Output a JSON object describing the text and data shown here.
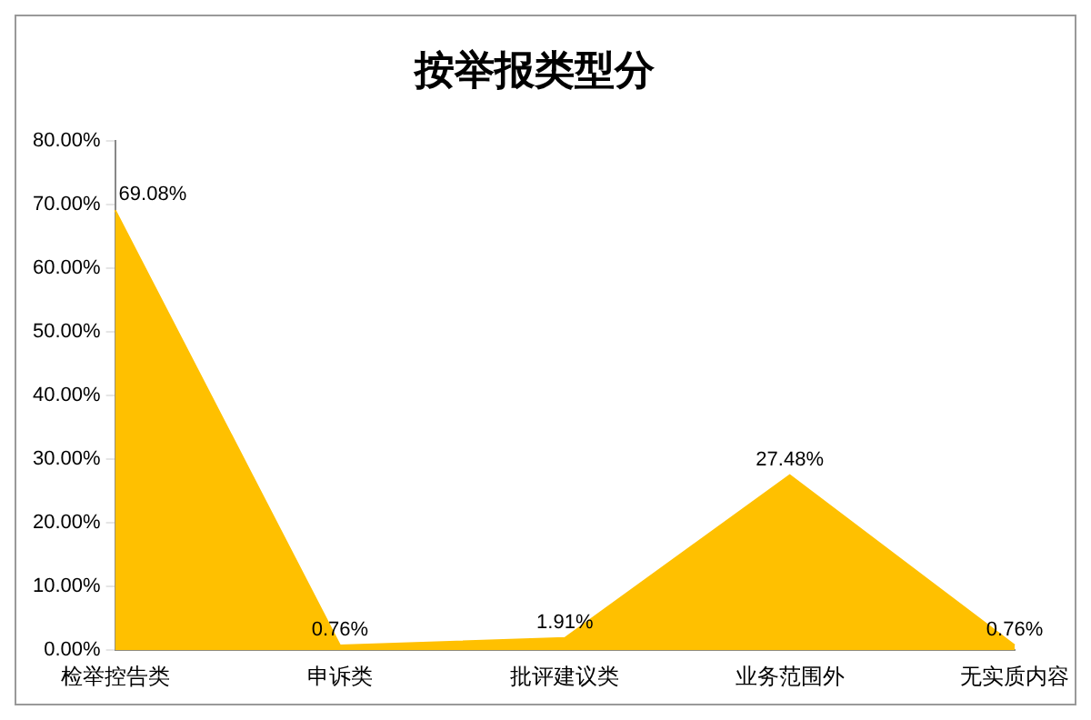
{
  "chart_data": {
    "type": "area",
    "title": "按举报类型分",
    "categories": [
      "检举控告类",
      "申诉类",
      "批评建议类",
      "业务范围外",
      "无实质内容"
    ],
    "values": [
      69.08,
      0.76,
      1.91,
      27.48,
      0.76
    ],
    "value_labels": [
      "69.08%",
      "0.76%",
      "1.91%",
      "27.48%",
      "0.76%"
    ],
    "color": "#ffc000",
    "ylim": [
      0,
      80
    ],
    "yticks": [
      {
        "value": 0,
        "label": "0.00%"
      },
      {
        "value": 10,
        "label": "10.00%"
      },
      {
        "value": 20,
        "label": "20.00%"
      },
      {
        "value": 30,
        "label": "30.00%"
      },
      {
        "value": 40,
        "label": "40.00%"
      },
      {
        "value": 50,
        "label": "50.00%"
      },
      {
        "value": 60,
        "label": "60.00%"
      },
      {
        "value": 70,
        "label": "70.00%"
      },
      {
        "value": 80,
        "label": "80.00%"
      }
    ],
    "grid": false,
    "legend": false
  }
}
